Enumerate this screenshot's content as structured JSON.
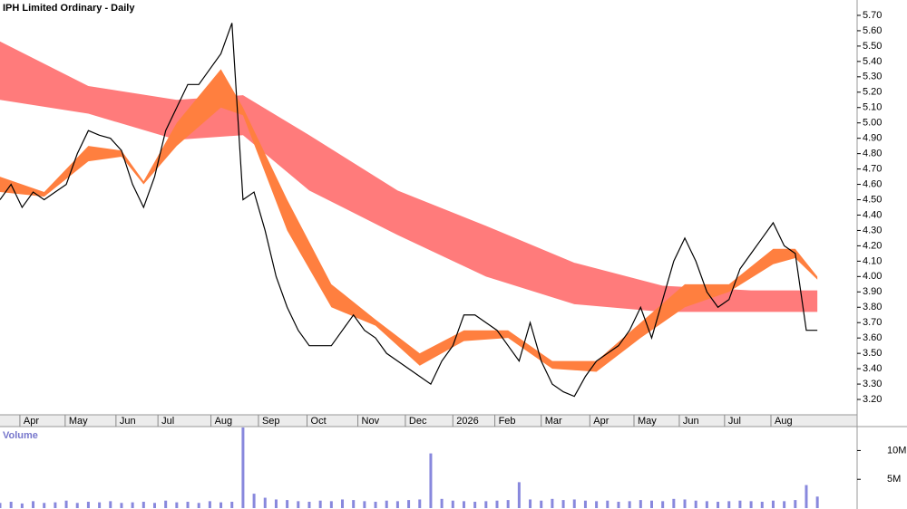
{
  "chart_data": [
    {
      "type": "line",
      "title": "IPH Limited Ordinary - Daily",
      "color": "#000000",
      "values": [
        4.5,
        4.6,
        4.45,
        4.55,
        4.5,
        4.55,
        4.6,
        4.8,
        4.95,
        4.92,
        4.9,
        4.82,
        4.6,
        4.45,
        4.65,
        4.95,
        5.1,
        5.25,
        5.25,
        5.35,
        5.45,
        5.65,
        4.5,
        4.55,
        4.3,
        4.0,
        3.8,
        3.65,
        3.55,
        3.55,
        3.55,
        3.65,
        3.75,
        3.65,
        3.6,
        3.5,
        3.45,
        3.4,
        3.35,
        3.3,
        3.45,
        3.55,
        3.75,
        3.75,
        3.7,
        3.65,
        3.55,
        3.45,
        3.7,
        3.45,
        3.3,
        3.25,
        3.22,
        3.35,
        3.45,
        3.5,
        3.55,
        3.65,
        3.8,
        3.6,
        3.85,
        4.1,
        4.25,
        4.1,
        3.9,
        3.8,
        3.85,
        4.05,
        4.15,
        4.25,
        4.35,
        4.2,
        4.15,
        3.65,
        3.65
      ],
      "bands": [
        {
          "color": "#ff7b7b",
          "x": [
            0,
            8,
            16,
            22,
            28,
            36,
            44,
            52,
            60,
            68,
            74
          ],
          "upper": [
            5.53,
            5.24,
            5.15,
            5.18,
            4.92,
            4.56,
            4.33,
            4.09,
            3.94,
            3.91,
            3.91
          ],
          "lower": [
            5.15,
            5.06,
            4.89,
            4.92,
            4.56,
            4.27,
            4.0,
            3.82,
            3.77,
            3.77,
            3.77
          ]
        },
        {
          "color": "#ff7f3f",
          "x": [
            0,
            4,
            8,
            11,
            13,
            16,
            20,
            22,
            26,
            30,
            34,
            38,
            42,
            46,
            50,
            54,
            58,
            62,
            66,
            70,
            72,
            74
          ],
          "upper": [
            4.65,
            4.55,
            4.85,
            4.82,
            4.62,
            5.0,
            5.35,
            5.1,
            4.5,
            3.95,
            3.72,
            3.5,
            3.65,
            3.65,
            3.45,
            3.45,
            3.7,
            3.95,
            3.95,
            4.18,
            4.18,
            4.0
          ],
          "lower": [
            4.55,
            4.52,
            4.75,
            4.78,
            4.6,
            4.85,
            5.1,
            5.05,
            4.3,
            3.8,
            3.68,
            3.42,
            3.58,
            3.6,
            3.4,
            3.38,
            3.6,
            3.8,
            3.9,
            4.08,
            4.12,
            3.98
          ]
        }
      ],
      "xlim": [
        0,
        77.6
      ],
      "ylim": [
        3.1,
        5.8
      ],
      "xticks": [
        {
          "value": 1.8,
          "label": "Apr"
        },
        {
          "value": 5.9,
          "label": "May"
        },
        {
          "value": 10.5,
          "label": "Jun"
        },
        {
          "value": 14.3,
          "label": "Jul"
        },
        {
          "value": 19.1,
          "label": "Aug"
        },
        {
          "value": 23.4,
          "label": "Sep"
        },
        {
          "value": 27.8,
          "label": "Oct"
        },
        {
          "value": 32.4,
          "label": "Nov"
        },
        {
          "value": 36.7,
          "label": "Dec"
        },
        {
          "value": 41.0,
          "label": "2026"
        },
        {
          "value": 44.8,
          "label": "Feb"
        },
        {
          "value": 49.0,
          "label": "Mar"
        },
        {
          "value": 53.4,
          "label": "Apr"
        },
        {
          "value": 57.4,
          "label": "May"
        },
        {
          "value": 61.5,
          "label": "Jun"
        },
        {
          "value": 65.6,
          "label": "Jul"
        },
        {
          "value": 69.8,
          "label": "Aug"
        }
      ],
      "yticks": [
        {
          "value": 3.2,
          "label": "3.20"
        },
        {
          "value": 3.3,
          "label": "3.30"
        },
        {
          "value": 3.4,
          "label": "3.40"
        },
        {
          "value": 3.5,
          "label": "3.50"
        },
        {
          "value": 3.6,
          "label": "3.60"
        },
        {
          "value": 3.7,
          "label": "3.70"
        },
        {
          "value": 3.8,
          "label": "3.80"
        },
        {
          "value": 3.9,
          "label": "3.90"
        },
        {
          "value": 4.0,
          "label": "4.00"
        },
        {
          "value": 4.1,
          "label": "4.10"
        },
        {
          "value": 4.2,
          "label": "4.20"
        },
        {
          "value": 4.3,
          "label": "4.30"
        },
        {
          "value": 4.4,
          "label": "4.40"
        },
        {
          "value": 4.5,
          "label": "4.50"
        },
        {
          "value": 4.6,
          "label": "4.60"
        },
        {
          "value": 4.7,
          "label": "4.70"
        },
        {
          "value": 4.8,
          "label": "4.80"
        },
        {
          "value": 4.9,
          "label": "4.90"
        },
        {
          "value": 5.0,
          "label": "5.00"
        },
        {
          "value": 5.1,
          "label": "5.10"
        },
        {
          "value": 5.2,
          "label": "5.20"
        },
        {
          "value": 5.3,
          "label": "5.30"
        },
        {
          "value": 5.4,
          "label": "5.40"
        },
        {
          "value": 5.5,
          "label": "5.50"
        },
        {
          "value": 5.6,
          "label": "5.60"
        },
        {
          "value": 5.7,
          "label": "5.70"
        }
      ]
    },
    {
      "type": "bar",
      "title": "Volume",
      "color": "#8888dd",
      "values": [
        900000,
        1100000,
        800000,
        1200000,
        900000,
        1000000,
        1300000,
        900000,
        1100000,
        1000000,
        1200000,
        900000,
        1000000,
        1100000,
        900000,
        1300000,
        1000000,
        1100000,
        900000,
        1200000,
        1000000,
        1100000,
        14000000,
        2500000,
        1800000,
        1500000,
        1400000,
        1200000,
        1100000,
        1300000,
        1200000,
        1500000,
        1400000,
        1200000,
        1100000,
        1300000,
        1200000,
        1400000,
        1500000,
        9500000,
        1600000,
        1300000,
        1200000,
        1100000,
        1200000,
        1300000,
        1400000,
        4500000,
        1500000,
        1300000,
        1600000,
        1400000,
        1500000,
        1300000,
        1200000,
        1300000,
        1100000,
        1200000,
        1400000,
        1300000,
        1200000,
        1600000,
        1500000,
        1300000,
        1200000,
        1100000,
        1200000,
        1300000,
        1200000,
        1100000,
        1300000,
        1200000,
        1400000,
        4000000,
        2000000
      ],
      "xlim": [
        0,
        77.6
      ],
      "ylim": [
        0,
        14000000
      ],
      "yticks": [
        {
          "value": 5000000,
          "label": "5M"
        },
        {
          "value": 10000000,
          "label": "10M"
        }
      ]
    }
  ]
}
